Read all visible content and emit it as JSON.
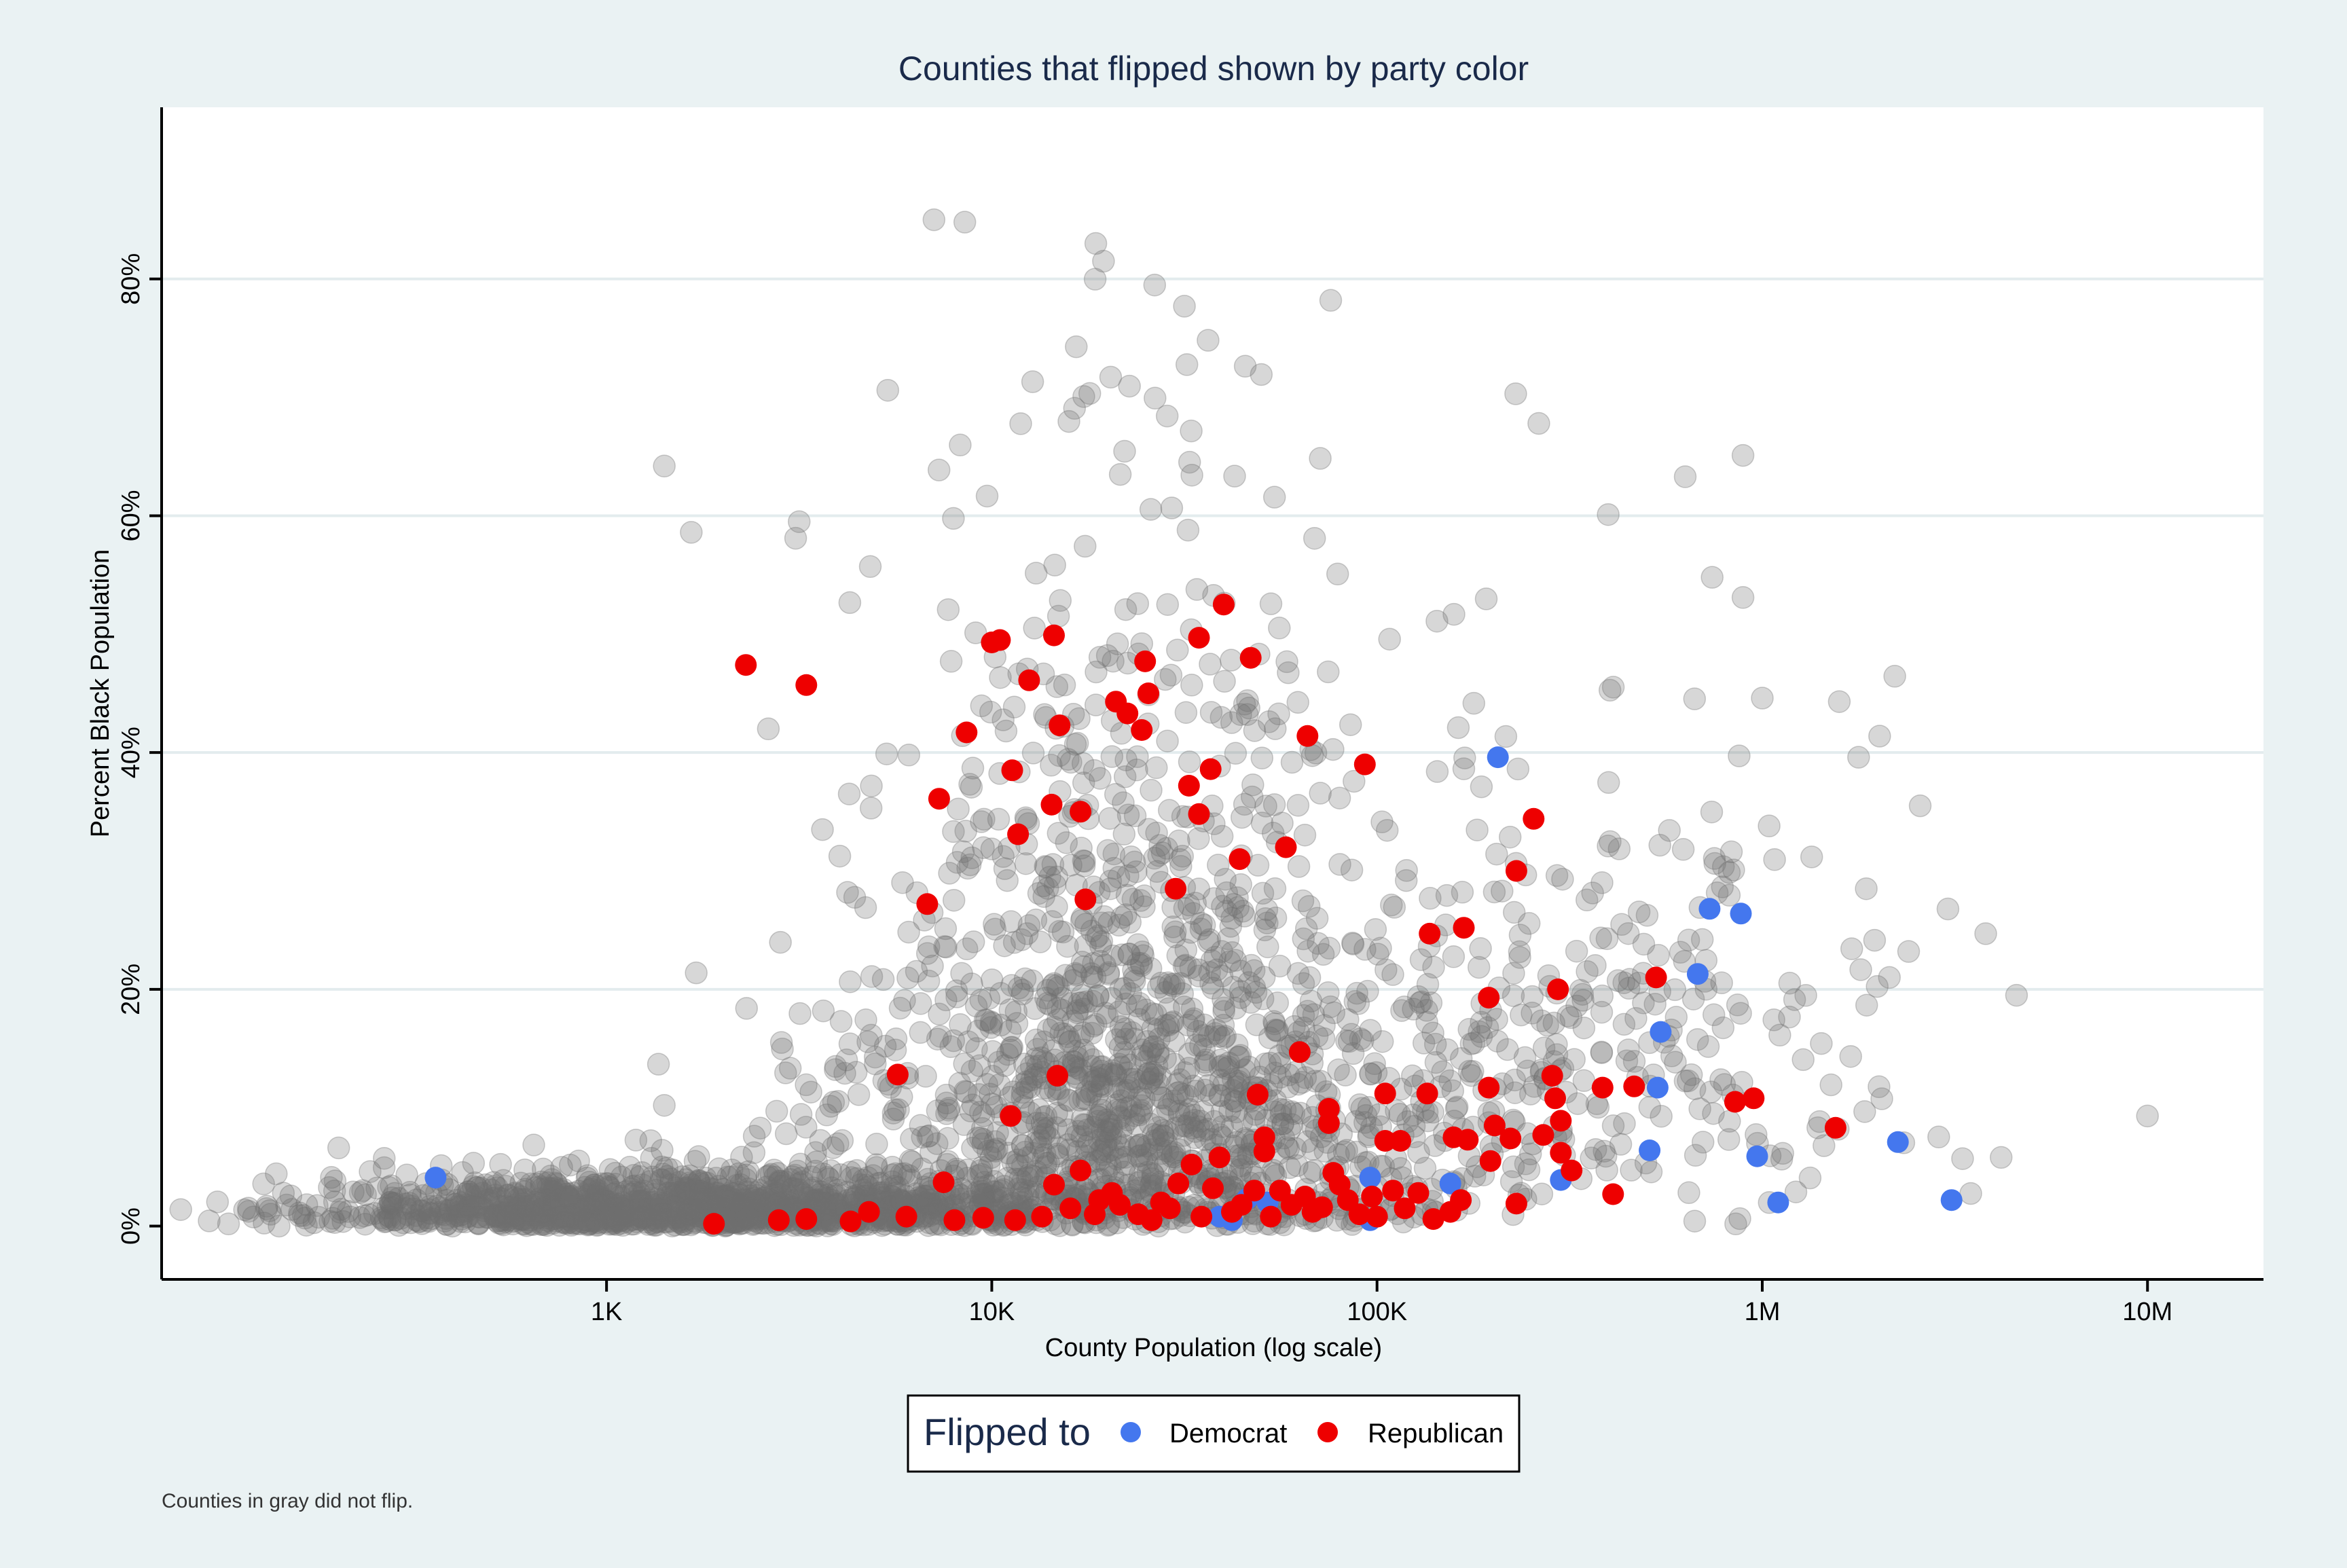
{
  "chart_data": {
    "type": "scatter",
    "title": "Counties that flipped shown by party color",
    "xlabel": "County Population (log scale)",
    "ylabel": "Percent Black Population",
    "x_scale": "log",
    "xlim": [
      70,
      20000000
    ],
    "ylim": [
      -0.045,
      0.945
    ],
    "x_ticks": [
      {
        "value": 1000,
        "label": "1K"
      },
      {
        "value": 10000,
        "label": "10K"
      },
      {
        "value": 100000,
        "label": "100K"
      },
      {
        "value": 1000000,
        "label": "1M"
      },
      {
        "value": 10000000,
        "label": "10M"
      }
    ],
    "y_ticks": [
      {
        "value": 0,
        "label": "0%"
      },
      {
        "value": 0.2,
        "label": "20%"
      },
      {
        "value": 0.4,
        "label": "40%"
      },
      {
        "value": 0.6,
        "label": "60%"
      },
      {
        "value": 0.8,
        "label": "80%"
      }
    ],
    "grid": "horizontal",
    "legend": {
      "title": "Flipped to",
      "placement": "bottom-center",
      "entries": [
        {
          "label": "Democrat",
          "color": "#4477ee"
        },
        {
          "label": "Republican",
          "color": "#ee0000"
        }
      ]
    },
    "note": "Counties in gray did not flip.",
    "colors": {
      "no_flip": "#707070",
      "democrat": "#4477ee",
      "republican": "#ee0000",
      "title_text": "#1a2a4a",
      "background": "#eaf2f3"
    },
    "series": [
      {
        "name": "Democrat",
        "color": "#4477ee",
        "points": [
          [
            360,
            0.041
          ],
          [
            206000,
            0.396
          ],
          [
            730000,
            0.268
          ],
          [
            880000,
            0.264
          ],
          [
            680000,
            0.213
          ],
          [
            545000,
            0.164
          ],
          [
            535000,
            0.117
          ],
          [
            510000,
            0.064
          ],
          [
            300000,
            0.039
          ],
          [
            155000,
            0.036
          ],
          [
            96000,
            0.041
          ],
          [
            46000,
            0.023
          ],
          [
            39000,
            0.008
          ],
          [
            96000,
            0.005
          ],
          [
            970000,
            0.059
          ],
          [
            1100000,
            0.02
          ],
          [
            2250000,
            0.071
          ],
          [
            3100000,
            0.022
          ],
          [
            52000,
            0.02
          ],
          [
            42000,
            0.005
          ]
        ]
      },
      {
        "name": "Republican",
        "color": "#ee0000",
        "points": [
          [
            2300,
            0.474
          ],
          [
            3300,
            0.457
          ],
          [
            10000,
            0.493
          ],
          [
            10500,
            0.495
          ],
          [
            14500,
            0.499
          ],
          [
            34500,
            0.497
          ],
          [
            40000,
            0.525
          ],
          [
            47000,
            0.48
          ],
          [
            12500,
            0.461
          ],
          [
            15000,
            0.423
          ],
          [
            21000,
            0.443
          ],
          [
            25000,
            0.477
          ],
          [
            25500,
            0.45
          ],
          [
            22500,
            0.433
          ],
          [
            24500,
            0.419
          ],
          [
            8600,
            0.417
          ],
          [
            7300,
            0.361
          ],
          [
            11300,
            0.385
          ],
          [
            14300,
            0.356
          ],
          [
            17000,
            0.35
          ],
          [
            11700,
            0.331
          ],
          [
            32500,
            0.372
          ],
          [
            34500,
            0.348
          ],
          [
            37000,
            0.386
          ],
          [
            66000,
            0.414
          ],
          [
            93000,
            0.39
          ],
          [
            6800,
            0.272
          ],
          [
            17500,
            0.276
          ],
          [
            30000,
            0.285
          ],
          [
            44000,
            0.31
          ],
          [
            58000,
            0.32
          ],
          [
            255000,
            0.344
          ],
          [
            230000,
            0.3
          ],
          [
            137000,
            0.247
          ],
          [
            168000,
            0.252
          ],
          [
            195000,
            0.193
          ],
          [
            530000,
            0.21
          ],
          [
            5700,
            0.128
          ],
          [
            14800,
            0.127
          ],
          [
            11200,
            0.093
          ],
          [
            49000,
            0.111
          ],
          [
            63000,
            0.147
          ],
          [
            75000,
            0.099
          ],
          [
            75000,
            0.087
          ],
          [
            105000,
            0.112
          ],
          [
            135000,
            0.112
          ],
          [
            195000,
            0.117
          ],
          [
            285000,
            0.127
          ],
          [
            290000,
            0.108
          ],
          [
            295000,
            0.2
          ],
          [
            385000,
            0.117
          ],
          [
            465000,
            0.118
          ],
          [
            850000,
            0.105
          ],
          [
            950000,
            0.108
          ],
          [
            1550000,
            0.083
          ],
          [
            105000,
            0.072
          ],
          [
            115000,
            0.072
          ],
          [
            158000,
            0.075
          ],
          [
            172000,
            0.073
          ],
          [
            202000,
            0.085
          ],
          [
            222000,
            0.074
          ],
          [
            270000,
            0.077
          ],
          [
            300000,
            0.089
          ],
          [
            300000,
            0.062
          ],
          [
            320000,
            0.047
          ],
          [
            410000,
            0.027
          ],
          [
            197000,
            0.055
          ],
          [
            230000,
            0.019
          ],
          [
            51000,
            0.063
          ],
          [
            51000,
            0.075
          ],
          [
            48000,
            0.03
          ],
          [
            77000,
            0.045
          ],
          [
            17000,
            0.047
          ],
          [
            14500,
            0.035
          ],
          [
            7500,
            0.037
          ],
          [
            2800,
            0.005
          ],
          [
            1900,
            0.002
          ],
          [
            3300,
            0.006
          ],
          [
            4300,
            0.004
          ],
          [
            4800,
            0.012
          ],
          [
            6000,
            0.008
          ],
          [
            8000,
            0.005
          ],
          [
            9500,
            0.007
          ],
          [
            11500,
            0.005
          ],
          [
            13500,
            0.008
          ],
          [
            16000,
            0.015
          ],
          [
            18500,
            0.01
          ],
          [
            20500,
            0.028
          ],
          [
            24000,
            0.01
          ],
          [
            27500,
            0.02
          ],
          [
            33000,
            0.052
          ],
          [
            39000,
            0.058
          ],
          [
            42000,
            0.012
          ],
          [
            56000,
            0.03
          ],
          [
            65000,
            0.025
          ],
          [
            72000,
            0.016
          ],
          [
            84000,
            0.022
          ],
          [
            97000,
            0.025
          ],
          [
            110000,
            0.03
          ],
          [
            128000,
            0.028
          ],
          [
            155000,
            0.012
          ],
          [
            165000,
            0.022
          ],
          [
            35000,
            0.008
          ],
          [
            29000,
            0.015
          ],
          [
            21500,
            0.018
          ],
          [
            19000,
            0.022
          ],
          [
            26000,
            0.005
          ],
          [
            30500,
            0.036
          ],
          [
            37500,
            0.032
          ],
          [
            44500,
            0.018
          ],
          [
            53000,
            0.008
          ],
          [
            60000,
            0.018
          ],
          [
            68000,
            0.012
          ],
          [
            80000,
            0.035
          ],
          [
            90000,
            0.01
          ],
          [
            100000,
            0.008
          ],
          [
            118000,
            0.015
          ],
          [
            140000,
            0.006
          ]
        ]
      }
    ]
  }
}
